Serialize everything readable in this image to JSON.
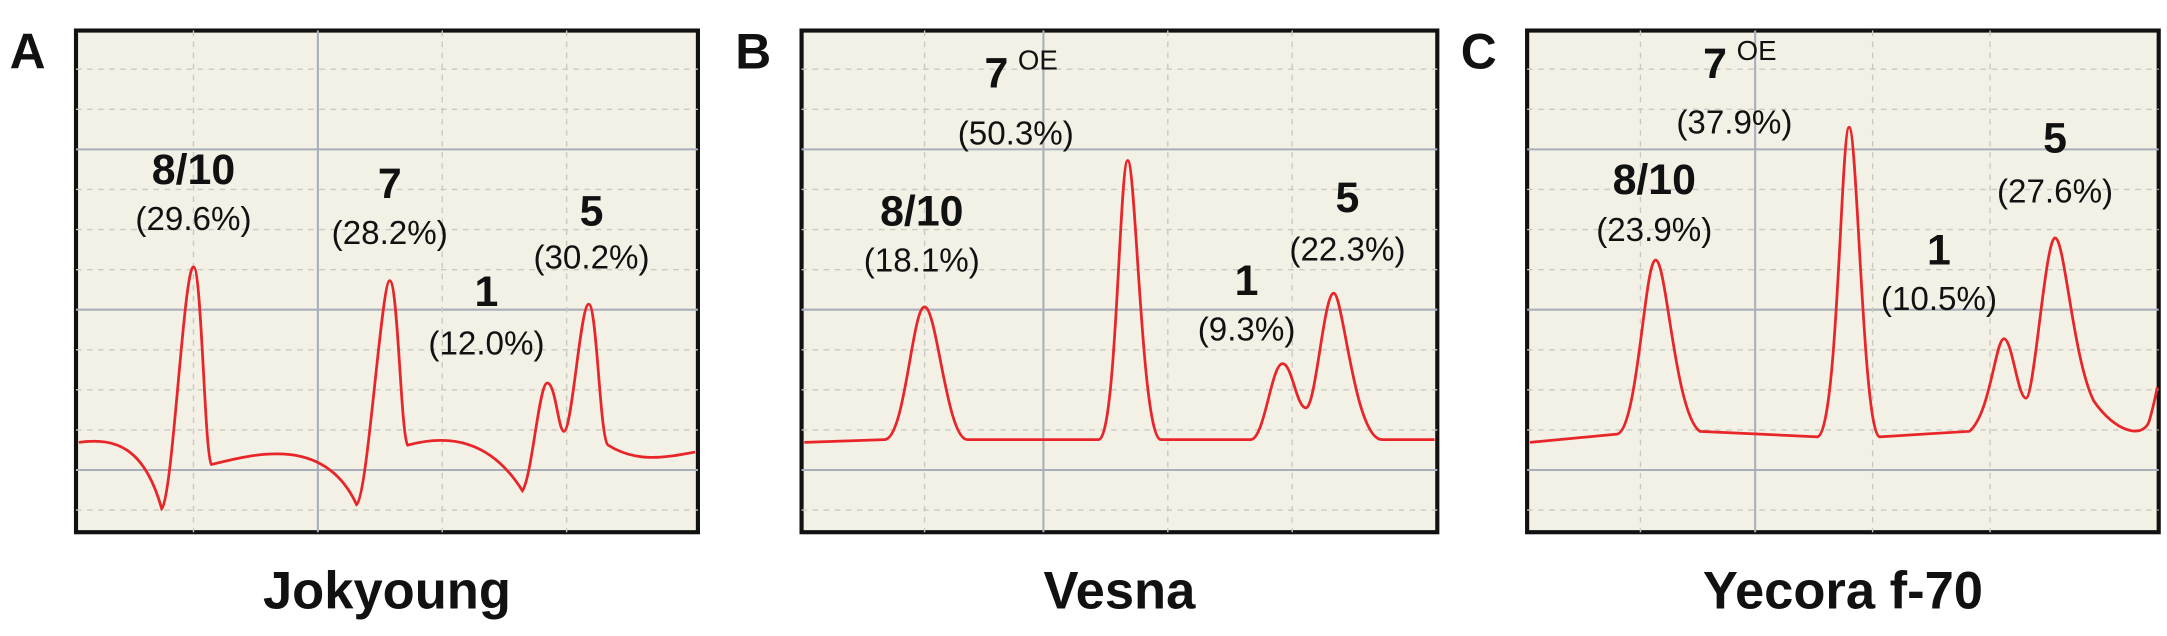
{
  "panels": [
    {
      "letter": "A",
      "name": "Jokyoung",
      "peaks": [
        {
          "label": "8/10",
          "percent": "(29.6%)"
        },
        {
          "label": "7",
          "percent": "(28.2%)"
        },
        {
          "label": "1",
          "percent": "(12.0%)"
        },
        {
          "label": "5",
          "percent": "(30.2%)"
        }
      ]
    },
    {
      "letter": "B",
      "name": "Vesna",
      "peaks": [
        {
          "label": "7",
          "superscript": "OE",
          "percent": "(50.3%)"
        },
        {
          "label": "8/10",
          "percent": "(18.1%)"
        },
        {
          "label": "1",
          "percent": "(9.3%)"
        },
        {
          "label": "5",
          "percent": "(22.3%)"
        }
      ]
    },
    {
      "letter": "C",
      "name": "Yecora f-70",
      "peaks": [
        {
          "label": "7",
          "superscript": "OE",
          "percent": "(37.9%)"
        },
        {
          "label": "8/10",
          "percent": "(23.9%)"
        },
        {
          "label": "1",
          "percent": "(10.5%)"
        },
        {
          "label": "5",
          "percent": "(27.6%)"
        }
      ]
    }
  ]
}
